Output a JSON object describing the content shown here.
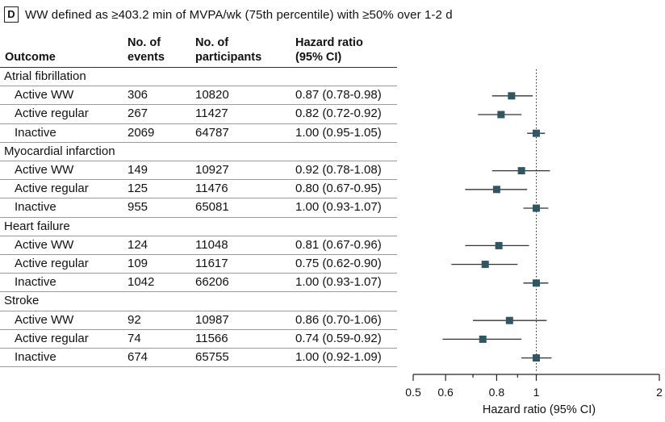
{
  "panel": {
    "letter": "D",
    "title": "WW defined as ≥403.2 min of MVPA/wk (75th percentile) with ≥50% over 1-2 d"
  },
  "headers": {
    "outcome": "Outcome",
    "events": "No. of events",
    "participants": "No. of participants",
    "hazard_ratio": "Hazard ratio (95% CI)"
  },
  "rows": [
    {
      "type": "group",
      "label": "Atrial fibrillation"
    },
    {
      "type": "item",
      "label": "Active WW",
      "events": "306",
      "participants": "10820",
      "hr_text": "0.87 (0.78-0.98)"
    },
    {
      "type": "item",
      "label": "Active regular",
      "events": "267",
      "participants": "11427",
      "hr_text": "0.82 (0.72-0.92)"
    },
    {
      "type": "item",
      "label": "Inactive",
      "events": "2069",
      "participants": "64787",
      "hr_text": "1.00 (0.95-1.05)"
    },
    {
      "type": "group",
      "label": "Myocardial infarction"
    },
    {
      "type": "item",
      "label": "Active WW",
      "events": "149",
      "participants": "10927",
      "hr_text": "0.92 (0.78-1.08)"
    },
    {
      "type": "item",
      "label": "Active regular",
      "events": "125",
      "participants": "11476",
      "hr_text": "0.80 (0.67-0.95)"
    },
    {
      "type": "item",
      "label": "Inactive",
      "events": "955",
      "participants": "65081",
      "hr_text": "1.00 (0.93-1.07)"
    },
    {
      "type": "group",
      "label": "Heart failure"
    },
    {
      "type": "item",
      "label": "Active WW",
      "events": "124",
      "participants": "11048",
      "hr_text": "0.81 (0.67-0.96)"
    },
    {
      "type": "item",
      "label": "Active regular",
      "events": "109",
      "participants": "11617",
      "hr_text": "0.75 (0.62-0.90)"
    },
    {
      "type": "item",
      "label": "Inactive",
      "events": "1042",
      "participants": "66206",
      "hr_text": "1.00 (0.93-1.07)"
    },
    {
      "type": "group",
      "label": "Stroke"
    },
    {
      "type": "item",
      "label": "Active WW",
      "events": "92",
      "participants": "10987",
      "hr_text": "0.86 (0.70-1.06)"
    },
    {
      "type": "item",
      "label": "Active regular",
      "events": "74",
      "participants": "11566",
      "hr_text": "0.74 (0.59-0.92)"
    },
    {
      "type": "item",
      "label": "Inactive",
      "events": "674",
      "participants": "65755",
      "hr_text": "1.00 (0.92-1.09)"
    }
  ],
  "chart_data": {
    "type": "forest",
    "xlabel": "Hazard ratio (95% CI)",
    "xscale": "log",
    "xlim": [
      0.5,
      2
    ],
    "xticks": [
      0.5,
      0.6,
      0.8,
      1,
      2
    ],
    "xtick_labels": [
      "0.5",
      "0.6",
      "0.8",
      "1",
      "2"
    ],
    "reference_line": 1,
    "points": [
      {
        "group": "Atrial fibrillation",
        "label": "Active WW",
        "hr": 0.87,
        "lo": 0.78,
        "hi": 0.98
      },
      {
        "group": "Atrial fibrillation",
        "label": "Active regular",
        "hr": 0.82,
        "lo": 0.72,
        "hi": 0.92
      },
      {
        "group": "Atrial fibrillation",
        "label": "Inactive",
        "hr": 1.0,
        "lo": 0.95,
        "hi": 1.05
      },
      {
        "group": "Myocardial infarction",
        "label": "Active WW",
        "hr": 0.92,
        "lo": 0.78,
        "hi": 1.08
      },
      {
        "group": "Myocardial infarction",
        "label": "Active regular",
        "hr": 0.8,
        "lo": 0.67,
        "hi": 0.95
      },
      {
        "group": "Myocardial infarction",
        "label": "Inactive",
        "hr": 1.0,
        "lo": 0.93,
        "hi": 1.07
      },
      {
        "group": "Heart failure",
        "label": "Active WW",
        "hr": 0.81,
        "lo": 0.67,
        "hi": 0.96
      },
      {
        "group": "Heart failure",
        "label": "Active regular",
        "hr": 0.75,
        "lo": 0.62,
        "hi": 0.9
      },
      {
        "group": "Heart failure",
        "label": "Inactive",
        "hr": 1.0,
        "lo": 0.93,
        "hi": 1.07
      },
      {
        "group": "Stroke",
        "label": "Active WW",
        "hr": 0.86,
        "lo": 0.7,
        "hi": 1.06
      },
      {
        "group": "Stroke",
        "label": "Active regular",
        "hr": 0.74,
        "lo": 0.59,
        "hi": 0.92
      },
      {
        "group": "Stroke",
        "label": "Inactive",
        "hr": 1.0,
        "lo": 0.92,
        "hi": 1.09
      }
    ],
    "marker_color": "#2f5661",
    "line_color": "#333333"
  }
}
